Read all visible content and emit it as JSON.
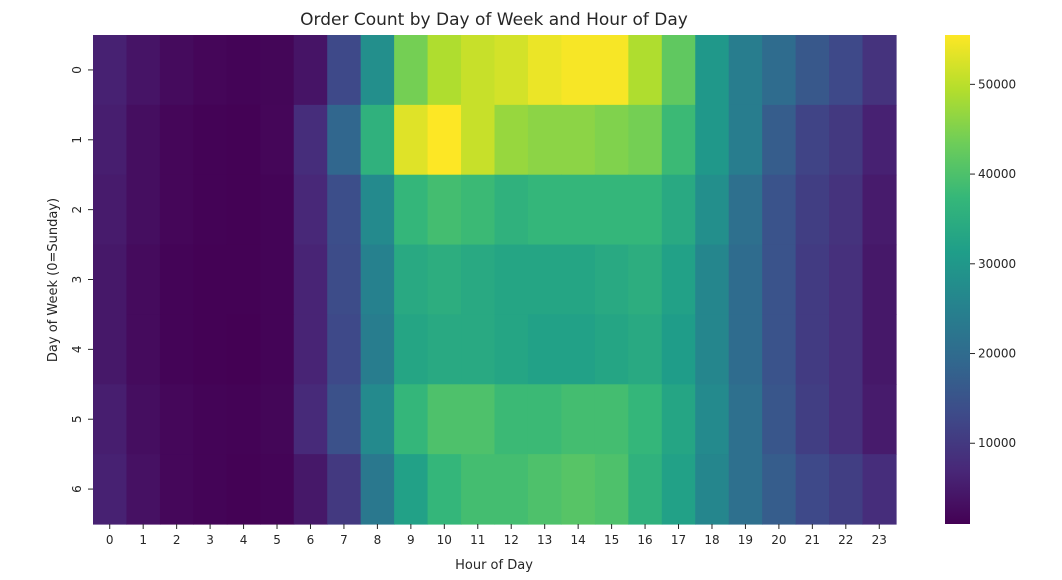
{
  "chart_data": {
    "type": "heatmap",
    "title": "Order Count by Day of Week and Hour of Day",
    "xlabel": "Hour of Day",
    "ylabel": "Day of Week (0=Sunday)",
    "x": [
      "0",
      "1",
      "2",
      "3",
      "4",
      "5",
      "6",
      "7",
      "8",
      "9",
      "10",
      "11",
      "12",
      "13",
      "14",
      "15",
      "16",
      "17",
      "18",
      "19",
      "20",
      "21",
      "22",
      "23"
    ],
    "y": [
      "0",
      "1",
      "2",
      "3",
      "4",
      "5",
      "6"
    ],
    "colormap": "viridis",
    "colorbar": {
      "min": 1000,
      "max": 55500,
      "ticks": [
        10000,
        20000,
        30000,
        40000,
        50000
      ],
      "tick_labels": [
        "10000",
        "20000",
        "30000",
        "40000",
        "50000"
      ]
    },
    "values": [
      [
        6000,
        4000,
        2500,
        1800,
        1500,
        1700,
        4000,
        13000,
        28000,
        44000,
        49000,
        51000,
        52000,
        54000,
        55000,
        55000,
        49000,
        42000,
        30000,
        24000,
        20000,
        16000,
        13000,
        9000
      ],
      [
        5500,
        3000,
        1800,
        1300,
        1200,
        1800,
        8000,
        19000,
        36000,
        53000,
        55500,
        51000,
        47000,
        46000,
        46000,
        45000,
        44000,
        38000,
        30000,
        24000,
        17000,
        12000,
        10000,
        6000
      ],
      [
        5000,
        3000,
        1800,
        1300,
        1200,
        1500,
        7000,
        14000,
        27000,
        37000,
        39000,
        38000,
        36000,
        37000,
        37000,
        37000,
        37000,
        34000,
        28000,
        21000,
        15000,
        11000,
        9000,
        5000
      ],
      [
        4500,
        2500,
        1500,
        1200,
        1100,
        1500,
        6500,
        13500,
        25000,
        34000,
        35000,
        34000,
        33000,
        33000,
        33000,
        34000,
        35000,
        32000,
        26000,
        20000,
        15000,
        10500,
        8500,
        4500
      ],
      [
        4500,
        2500,
        1500,
        1100,
        1000,
        1500,
        6500,
        13000,
        24000,
        33000,
        34000,
        34000,
        33000,
        32000,
        32000,
        33000,
        34000,
        31000,
        26000,
        20000,
        15000,
        10500,
        8500,
        4500
      ],
      [
        5500,
        3000,
        2000,
        1500,
        1300,
        1700,
        7500,
        14500,
        27000,
        37000,
        40000,
        40000,
        38000,
        38000,
        39000,
        39000,
        37000,
        33000,
        27000,
        21000,
        15500,
        11000,
        8500,
        5000
      ],
      [
        6000,
        3500,
        2000,
        1500,
        1200,
        1500,
        4500,
        10000,
        23000,
        32000,
        37000,
        39000,
        39000,
        40000,
        41000,
        40000,
        36000,
        32000,
        26000,
        21000,
        17000,
        13000,
        11000,
        8000
      ]
    ]
  }
}
